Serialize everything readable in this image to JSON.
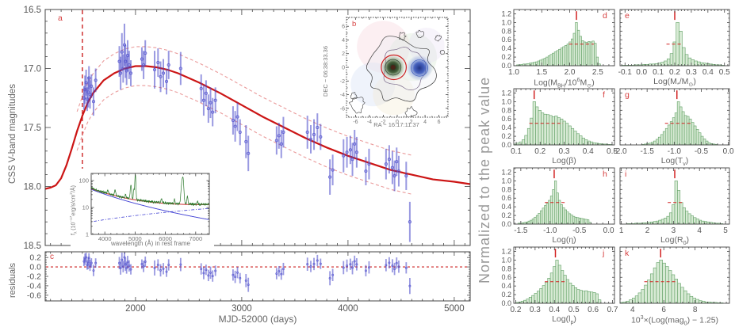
{
  "figure": {
    "right_grid_ylabel": "Normalized to the peak value",
    "colors": {
      "model_curve": "#cc1515",
      "envelope": "#ea9a9a",
      "vline": "#cc2222",
      "data_points": "#5a5ad0",
      "error_bars": "rgba(70,70,200,0.55)",
      "hist_fill": "#d7ead4",
      "hist_edge": "#5f9f63",
      "red_marker": "#d22222",
      "axis": "#444444",
      "tick_text": "#555555",
      "panel_letter": "#d64040"
    }
  },
  "chart_data": {
    "light_curve": {
      "type": "line+scatter",
      "panel_label": "a",
      "ylabel": "CSS V-band magnitudes",
      "xlabel": "MJD-52000 (days)",
      "x_range": [
        1150,
        5150
      ],
      "y_range": [
        16.5,
        18.5
      ],
      "x_ticks": [
        2000,
        3000,
        4000,
        5000
      ],
      "y_ticks": [
        16.5,
        17.0,
        17.5,
        18.0,
        18.5
      ],
      "vline_x": 1500,
      "envelope_offset": 0.165,
      "envelope_t_range": [
        1440,
        4620
      ],
      "model": {
        "t": [
          1150,
          1200,
          1250,
          1300,
          1350,
          1400,
          1450,
          1500,
          1550,
          1600,
          1700,
          1800,
          1900,
          2000,
          2100,
          2200,
          2300,
          2400,
          2600,
          2800,
          3000,
          3200,
          3400,
          3600,
          3800,
          4000,
          4200,
          4400,
          4600,
          4800,
          5000,
          5150
        ],
        "mag": [
          18.02,
          18.01,
          17.99,
          17.93,
          17.82,
          17.68,
          17.53,
          17.4,
          17.29,
          17.21,
          17.1,
          17.04,
          17.0,
          16.98,
          16.98,
          16.99,
          17.01,
          17.04,
          17.12,
          17.21,
          17.31,
          17.41,
          17.5,
          17.59,
          17.67,
          17.74,
          17.8,
          17.86,
          17.9,
          17.94,
          17.96,
          17.98
        ]
      },
      "points": [
        [
          1515,
          17.25,
          0.1
        ],
        [
          1525,
          17.18,
          0.12
        ],
        [
          1535,
          17.12,
          0.11
        ],
        [
          1545,
          17.26,
          0.1
        ],
        [
          1555,
          17.2,
          0.13
        ],
        [
          1562,
          17.08,
          0.1
        ],
        [
          1572,
          17.22,
          0.12
        ],
        [
          1585,
          17.15,
          0.1
        ],
        [
          1605,
          17.28,
          0.12
        ],
        [
          1625,
          17.1,
          0.1
        ],
        [
          1848,
          16.94,
          0.13
        ],
        [
          1860,
          17.04,
          0.14
        ],
        [
          1872,
          16.86,
          0.16
        ],
        [
          1884,
          17.0,
          0.12
        ],
        [
          1896,
          16.8,
          0.18
        ],
        [
          1906,
          16.94,
          0.14
        ],
        [
          1916,
          17.02,
          0.12
        ],
        [
          1926,
          16.89,
          0.13
        ],
        [
          1940,
          16.97,
          0.12
        ],
        [
          1956,
          17.04,
          0.11
        ],
        [
          2060,
          16.92,
          0.1
        ],
        [
          2076,
          16.97,
          0.12
        ],
        [
          2092,
          16.87,
          0.11
        ],
        [
          2180,
          17.01,
          0.16
        ],
        [
          2212,
          16.95,
          0.12
        ],
        [
          2236,
          17.07,
          0.13
        ],
        [
          2262,
          17.04,
          0.12
        ],
        [
          2292,
          17.11,
          0.11
        ],
        [
          2312,
          16.97,
          0.12
        ],
        [
          2425,
          17.0,
          0.14
        ],
        [
          2618,
          17.17,
          0.12
        ],
        [
          2642,
          17.27,
          0.13
        ],
        [
          2664,
          17.21,
          0.11
        ],
        [
          2686,
          17.34,
          0.12
        ],
        [
          2706,
          17.29,
          0.13
        ],
        [
          2726,
          17.37,
          0.12
        ],
        [
          2752,
          17.27,
          0.11
        ],
        [
          2918,
          17.44,
          0.12
        ],
        [
          2938,
          17.49,
          0.13
        ],
        [
          2960,
          17.41,
          0.12
        ],
        [
          2984,
          17.54,
          0.11
        ],
        [
          3040,
          17.62,
          0.14
        ],
        [
          3062,
          17.72,
          0.15
        ],
        [
          3328,
          17.61,
          0.12
        ],
        [
          3350,
          17.57,
          0.11
        ],
        [
          3372,
          17.64,
          0.12
        ],
        [
          3392,
          17.54,
          0.13
        ],
        [
          3618,
          17.54,
          0.14
        ],
        [
          3650,
          17.6,
          0.12
        ],
        [
          3680,
          17.56,
          0.13
        ],
        [
          3712,
          17.5,
          0.12
        ],
        [
          3742,
          17.58,
          0.11
        ],
        [
          3830,
          17.92,
          0.15
        ],
        [
          3856,
          17.86,
          0.13
        ],
        [
          3958,
          17.74,
          0.14
        ],
        [
          3990,
          17.71,
          0.13
        ],
        [
          4022,
          17.69,
          0.12
        ],
        [
          4042,
          17.77,
          0.14
        ],
        [
          4062,
          17.64,
          0.12
        ],
        [
          4082,
          17.71,
          0.13
        ],
        [
          4168,
          17.87,
          0.12
        ],
        [
          4198,
          17.81,
          0.13
        ],
        [
          4358,
          17.81,
          0.13
        ],
        [
          4388,
          17.77,
          0.12
        ],
        [
          4418,
          17.84,
          0.14
        ],
        [
          4438,
          17.91,
          0.13
        ],
        [
          4458,
          17.79,
          0.12
        ],
        [
          4478,
          17.87,
          0.13
        ],
        [
          4548,
          17.91,
          0.12
        ],
        [
          4582,
          18.3,
          0.17
        ]
      ]
    },
    "residuals": {
      "type": "scatter",
      "panel_label": "c",
      "ylabel": "residuals",
      "y_range": [
        0.32,
        -0.72
      ],
      "y_ticks": [
        0.2,
        0.0,
        -0.2,
        -0.4,
        -0.6
      ],
      "zero_line": 0.0
    },
    "galaxy_inset": {
      "type": "image+contours",
      "panel_label": "b",
      "xlabel": "RA − 16:17:11.37",
      "ylabel": "DEC − 06:38:33.36",
      "axis_ticks": [
        -6,
        -4,
        -2,
        0,
        2,
        4,
        6
      ],
      "host_core": {
        "ra": -0.6,
        "dec": 0.0,
        "radius": 1.7
      },
      "red_circle": {
        "ra": -0.5,
        "dec": 0.0,
        "radius": 1.8,
        "color": "#cc2222"
      },
      "companion_blue": {
        "ra": 3.2,
        "dec": -0.1,
        "radius": 1.9
      },
      "outer_contour": {
        "ra": 0.3,
        "dec": -0.2,
        "radius": 4.7,
        "wobble": 0.22
      },
      "inner_contour": {
        "ra": 1.0,
        "dec": -0.1,
        "radius": 3.1,
        "wobble": 0.18
      },
      "fragments": [
        [
          -5.7,
          -5.5,
          1.05
        ],
        [
          1.9,
          -6.6,
          0.75
        ],
        [
          0.7,
          4.55,
          0.5
        ],
        [
          3.3,
          4.9,
          0.5
        ],
        [
          5.9,
          4.3,
          0.4
        ],
        [
          -6.3,
          -4.2,
          0.45
        ],
        [
          6.5,
          2.2,
          0.3
        ]
      ],
      "tint_spots": [
        [
          -2.0,
          3.0,
          3.8,
          "#f5c9d4"
        ],
        [
          2.2,
          1.5,
          3.5,
          "#cfe6cb"
        ],
        [
          -3.5,
          -2.5,
          3.2,
          "#c9d7f2"
        ],
        [
          4.2,
          3.2,
          2.6,
          "#e6d9f2"
        ],
        [
          -0.5,
          -4.0,
          3.0,
          "#f2e9c9"
        ]
      ]
    },
    "spectrum_inset": {
      "type": "line",
      "ylabel": "f~λ~ (10^−17^erg/s/cm^2^/Å)",
      "xlabel": "wavelength (Å) in rest frame",
      "x_range": [
        3550,
        7450
      ],
      "x_ticks": [
        4000,
        5000,
        6000,
        7000
      ],
      "y_ticks": [
        1,
        10,
        100
      ],
      "agn_powerlaw": {
        "norm": 45,
        "slope": -3.5,
        "ref": 3600
      },
      "host_template": {
        "norm": 3.0,
        "slope": 1.55,
        "ref": 3600
      },
      "emission_lines": [
        [
          4102,
          10,
          18
        ],
        [
          4340,
          16,
          18
        ],
        [
          4686,
          7,
          15
        ],
        [
          4861,
          48,
          18
        ],
        [
          4959,
          28,
          14
        ],
        [
          5007,
          150,
          14
        ],
        [
          5876,
          6,
          20
        ],
        [
          6300,
          6,
          15
        ],
        [
          6563,
          105,
          30
        ],
        [
          6585,
          35,
          14
        ],
        [
          6725,
          13,
          16
        ],
        [
          7065,
          4,
          15
        ]
      ],
      "colors": {
        "spectrum": "#2d7a2d",
        "total_fit": "#cc3333",
        "agn": "#2222cc",
        "host": "#2222cc"
      }
    },
    "right_grid": {
      "y_range": [
        0,
        1.3
      ],
      "y_tick_labels": [
        "0.0",
        "0.2",
        "0.4",
        "0.6",
        "0.8",
        "1.0",
        "1.2"
      ]
    },
    "histograms": [
      {
        "id": "d",
        "panel_label": "d",
        "xlabel": "Log(M~BH~/10^6^M~⊙~)",
        "x_range": [
          1.0,
          2.8
        ],
        "x_ticks": [
          1.0,
          1.5,
          2.0,
          2.5
        ],
        "x_tick_labels": [
          "1.0",
          "1.5",
          "2.0",
          "2.5"
        ],
        "bins_range": [
          1.05,
          2.55
        ],
        "peak_x": 2.12,
        "fwhm": [
          1.99,
          2.43
        ],
        "values": [
          0.02,
          0.02,
          0.03,
          0.04,
          0.04,
          0.05,
          0.06,
          0.07,
          0.08,
          0.09,
          0.11,
          0.13,
          0.15,
          0.17,
          0.2,
          0.23,
          0.26,
          0.29,
          0.32,
          0.35,
          0.38,
          0.41,
          0.44,
          0.47,
          0.5,
          0.55,
          0.62,
          0.75,
          1.0,
          0.82,
          0.68,
          0.58,
          0.55,
          0.54,
          0.56,
          0.55,
          0.57,
          0.52,
          0.2,
          0.04
        ]
      },
      {
        "id": "e",
        "panel_label": "e",
        "xlabel": "Log(M~*~/M~⊙~)",
        "x_range": [
          -0.13,
          0.53
        ],
        "x_ticks": [
          -0.1,
          0.0,
          0.1,
          0.2,
          0.3,
          0.4,
          0.5
        ],
        "x_tick_labels": [
          "-0.1",
          "0.0",
          "0.1",
          "0.2",
          "0.3",
          "0.4",
          "0.5"
        ],
        "bins_range": [
          -0.12,
          0.5
        ],
        "peak_x": 0.2,
        "fwhm": [
          0.15,
          0.25
        ],
        "values": [
          0.01,
          0.01,
          0.01,
          0.01,
          0.02,
          0.02,
          0.02,
          0.03,
          0.03,
          0.04,
          0.04,
          0.05,
          0.06,
          0.08,
          0.11,
          0.16,
          0.28,
          0.55,
          1.0,
          0.8,
          0.42,
          0.26,
          0.18,
          0.14,
          0.11,
          0.09,
          0.07,
          0.06,
          0.05,
          0.04,
          0.03,
          0.02,
          0.02,
          0.01
        ]
      },
      {
        "id": "f",
        "panel_label": "f",
        "xlabel": "Log(β)",
        "x_range": [
          0.09,
          0.51
        ],
        "x_ticks": [
          0.1,
          0.2,
          0.3,
          0.4,
          0.5
        ],
        "x_tick_labels": [
          "0.1",
          "0.2",
          "0.3",
          "0.4",
          "0.5"
        ],
        "bins_range": [
          0.09,
          0.5
        ],
        "peak_x": 0.175,
        "fwhm": [
          0.155,
          0.295
        ],
        "values": [
          0.02,
          0.04,
          0.07,
          0.12,
          0.22,
          0.38,
          0.62,
          1.0,
          0.88,
          0.8,
          0.74,
          0.71,
          0.7,
          0.68,
          0.65,
          0.67,
          0.63,
          0.6,
          0.55,
          0.5,
          0.44,
          0.38,
          0.32,
          0.26,
          0.21,
          0.16,
          0.12,
          0.09,
          0.07,
          0.05,
          0.04,
          0.03,
          0.02,
          0.02,
          0.01,
          0.01
        ]
      },
      {
        "id": "g",
        "panel_label": "g",
        "xlabel": "Log(T~v~)",
        "x_range": [
          -2.0,
          0.02
        ],
        "x_ticks": [
          -2.0,
          -1.5,
          -1.0,
          -0.5,
          0.0
        ],
        "x_tick_labels": [
          "-2.0",
          "-1.5",
          "-1.0",
          "-0.5",
          "0.0"
        ],
        "bins_range": [
          -1.6,
          -0.2
        ],
        "peak_x": -0.95,
        "fwhm": [
          -1.17,
          -0.68
        ],
        "values": [
          0.01,
          0.02,
          0.03,
          0.04,
          0.06,
          0.09,
          0.13,
          0.18,
          0.24,
          0.31,
          0.38,
          0.46,
          0.54,
          0.63,
          0.74,
          1.0,
          0.88,
          0.77,
          0.68,
          0.66,
          0.6,
          0.52,
          0.44,
          0.36,
          0.28,
          0.2,
          0.14,
          0.09,
          0.05,
          0.03,
          0.02,
          0.01
        ]
      },
      {
        "id": "h",
        "panel_label": "h",
        "xlabel": "Log(η)",
        "x_range": [
          -1.62,
          0.1
        ],
        "x_ticks": [
          -1.5,
          -1.0,
          -0.5,
          0.0
        ],
        "x_tick_labels": [
          "-1.5",
          "-1.0",
          "-0.5",
          "0.0"
        ],
        "bins_range": [
          -1.55,
          -0.3
        ],
        "peak_x": -0.93,
        "fwhm": [
          -1.09,
          -0.75
        ],
        "values": [
          0.02,
          0.02,
          0.03,
          0.04,
          0.05,
          0.07,
          0.09,
          0.12,
          0.16,
          0.2,
          0.25,
          0.31,
          0.37,
          0.43,
          0.48,
          0.55,
          0.65,
          0.8,
          1.0,
          0.72,
          0.55,
          0.45,
          0.38,
          0.33,
          0.28,
          0.24,
          0.21,
          0.18,
          0.16,
          0.15,
          0.14,
          0.13,
          0.12,
          0.11,
          0.1,
          0.04
        ]
      },
      {
        "id": "i",
        "panel_label": "i",
        "xlabel": "Log(R~0~)",
        "x_range": [
          0.95,
          5.15
        ],
        "x_ticks": [
          1,
          2,
          3,
          4,
          5
        ],
        "x_tick_labels": [
          "1",
          "2",
          "3",
          "4",
          "5"
        ],
        "bins_range": [
          1.2,
          4.9
        ],
        "peak_x": 3.05,
        "fwhm": [
          2.78,
          3.36
        ],
        "values": [
          0.01,
          0.01,
          0.01,
          0.02,
          0.02,
          0.02,
          0.03,
          0.03,
          0.04,
          0.05,
          0.06,
          0.07,
          0.09,
          0.11,
          0.14,
          0.18,
          0.26,
          0.45,
          1.0,
          0.78,
          0.5,
          0.38,
          0.3,
          0.24,
          0.19,
          0.15,
          0.12,
          0.09,
          0.07,
          0.06,
          0.05,
          0.04,
          0.03,
          0.02,
          0.02,
          0.01
        ]
      },
      {
        "id": "j",
        "panel_label": "j",
        "xlabel": "Log(l~p~)",
        "x_range": [
          0.19,
          0.71
        ],
        "x_ticks": [
          0.2,
          0.3,
          0.4,
          0.5,
          0.6,
          0.7
        ],
        "x_tick_labels": [
          "0.2",
          "0.3",
          "0.4",
          "0.5",
          "0.6",
          "0.7"
        ],
        "bins_range": [
          0.2,
          0.64
        ],
        "peak_x": 0.405,
        "fwhm": [
          0.35,
          0.465
        ],
        "values": [
          0.02,
          0.03,
          0.05,
          0.07,
          0.1,
          0.14,
          0.18,
          0.23,
          0.28,
          0.34,
          0.41,
          0.49,
          0.58,
          0.7,
          0.85,
          1.0,
          0.88,
          0.76,
          0.65,
          0.55,
          0.47,
          0.41,
          0.36,
          0.32,
          0.3,
          0.28,
          0.29,
          0.27,
          0.26,
          0.25,
          0.22,
          0.08
        ]
      },
      {
        "id": "k",
        "panel_label": "k",
        "xlabel": "10^3^×(Log(mag~0~) − 1.25)",
        "x_range": [
          3.2,
          10.2
        ],
        "x_ticks": [
          4,
          6,
          8
        ],
        "x_tick_labels": [
          "4",
          "6",
          "8"
        ],
        "bins_range": [
          3.2,
          9.8
        ],
        "peak_x": 5.8,
        "fwhm": [
          4.75,
          6.8
        ],
        "values": [
          0.02,
          0.03,
          0.05,
          0.08,
          0.12,
          0.17,
          0.24,
          0.32,
          0.42,
          0.54,
          0.68,
          0.82,
          0.94,
          1.0,
          0.93,
          0.85,
          0.76,
          0.66,
          0.56,
          0.46,
          0.37,
          0.29,
          0.22,
          0.16,
          0.12,
          0.09,
          0.06,
          0.05,
          0.03,
          0.03,
          0.02,
          0.02,
          0.01,
          0.01
        ]
      }
    ]
  }
}
